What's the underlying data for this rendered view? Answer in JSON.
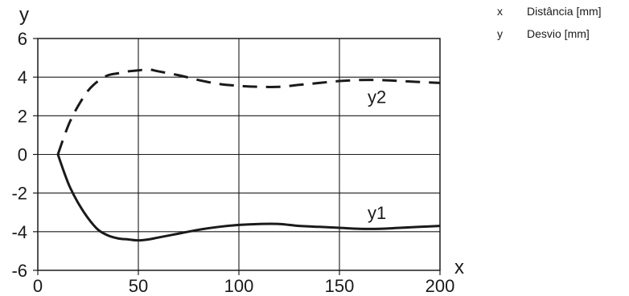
{
  "chart_data": {
    "type": "line",
    "title": "",
    "xlabel": "x",
    "ylabel": "y",
    "xlim": [
      0,
      200
    ],
    "ylim": [
      -6,
      6
    ],
    "x_ticks": [
      0,
      50,
      100,
      150,
      200
    ],
    "y_ticks": [
      -6,
      -4,
      -2,
      0,
      2,
      4,
      6
    ],
    "grid": true,
    "series": [
      {
        "name": "y1",
        "style": "solid",
        "color": "#1a1a1a",
        "x": [
          10,
          13,
          16,
          20,
          25,
          30,
          35,
          40,
          45,
          50,
          55,
          60,
          70,
          80,
          90,
          100,
          110,
          120,
          130,
          140,
          150,
          160,
          170,
          180,
          190,
          200
        ],
        "y": [
          0,
          -0.9,
          -1.7,
          -2.5,
          -3.3,
          -3.9,
          -4.2,
          -4.35,
          -4.4,
          -4.45,
          -4.4,
          -4.3,
          -4.1,
          -3.9,
          -3.75,
          -3.65,
          -3.6,
          -3.6,
          -3.7,
          -3.75,
          -3.8,
          -3.85,
          -3.85,
          -3.8,
          -3.75,
          -3.7
        ]
      },
      {
        "name": "y2",
        "style": "dashed",
        "color": "#1a1a1a",
        "x": [
          10,
          13,
          16,
          20,
          25,
          30,
          35,
          40,
          45,
          50,
          55,
          60,
          70,
          80,
          90,
          100,
          110,
          120,
          130,
          140,
          150,
          160,
          170,
          180,
          190,
          200
        ],
        "y": [
          0,
          0.9,
          1.7,
          2.5,
          3.3,
          3.8,
          4.1,
          4.2,
          4.3,
          4.35,
          4.4,
          4.3,
          4.1,
          3.85,
          3.65,
          3.55,
          3.5,
          3.5,
          3.6,
          3.7,
          3.8,
          3.85,
          3.85,
          3.8,
          3.75,
          3.7
        ]
      }
    ],
    "annotations": [
      {
        "text": "y1",
        "x": 170,
        "y": -3.0
      },
      {
        "text": "y2",
        "x": 170,
        "y": 3.0
      }
    ]
  },
  "legend": {
    "items": [
      {
        "key": "x",
        "label": "Distância [mm]"
      },
      {
        "key": "y",
        "label": "Desvio [mm]"
      }
    ]
  }
}
